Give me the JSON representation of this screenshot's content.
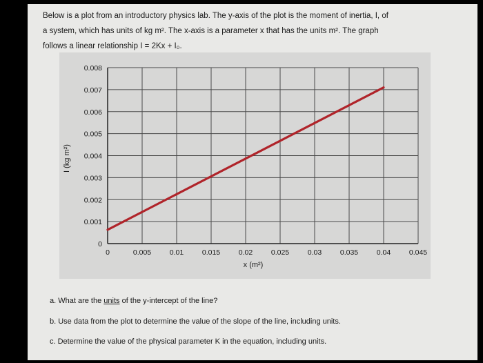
{
  "intro": {
    "line1": "Below is a plot from an introductory physics lab.  The y-axis of the plot is the moment of inertia, I, of",
    "line2": "a system, which has units of kg m². The x-axis is a parameter x that has the units m².  The graph",
    "line3": "follows a linear relationship I = 2Kx + I₀."
  },
  "chart_data": {
    "type": "line",
    "xlabel": "x (m²)",
    "ylabel": "I (kg m²)",
    "xlim": [
      0,
      0.045
    ],
    "ylim": [
      0,
      0.008
    ],
    "xticks": [
      "0",
      "0.005",
      "0.01",
      "0.015",
      "0.02",
      "0.025",
      "0.03",
      "0.035",
      "0.04",
      "0.045"
    ],
    "yticks": [
      "0",
      "0.001",
      "0.002",
      "0.003",
      "0.004",
      "0.005",
      "0.006",
      "0.007",
      "0.008"
    ],
    "grid": true,
    "series": [
      {
        "x": [
          0,
          0.04
        ],
        "y": [
          0.00063,
          0.0071
        ],
        "color": "#b0242a"
      }
    ]
  },
  "questions": {
    "a_prefix": "a.  What are the ",
    "a_units": "units",
    "a_suffix": " of the y-intercept of the line?",
    "b": "b. Use data from the plot to determine the value of the slope of the line, including units.",
    "c": "c. Determine the value of the physical parameter K in the equation, including units."
  },
  "colors": {
    "line": "#b0242a",
    "grid": "#4a4a4a",
    "paper": "#e9e9e7"
  }
}
